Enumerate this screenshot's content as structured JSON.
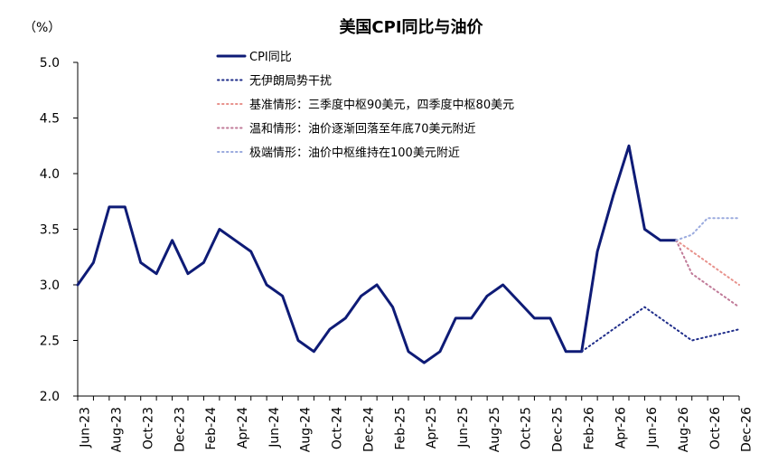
{
  "chart_data": {
    "type": "line",
    "title": "美国CPI同比与油价",
    "unit_label": "（%）",
    "ylim": [
      2.0,
      5.0
    ],
    "y_ticks": [
      "2.0",
      "2.5",
      "3.0",
      "3.5",
      "4.0",
      "4.5",
      "5.0"
    ],
    "x_tick_labels": [
      "Jun-23",
      "Aug-23",
      "Oct-23",
      "Dec-23",
      "Feb-24",
      "Apr-24",
      "Jun-24",
      "Aug-24",
      "Oct-24",
      "Dec-24",
      "Feb-25",
      "Apr-25",
      "Jun-25",
      "Aug-25",
      "Oct-25",
      "Dec-25",
      "Feb-26",
      "Apr-26",
      "Jun-26",
      "Aug-26",
      "Oct-26",
      "Dec-26"
    ],
    "x_months": [
      "2023-06",
      "2023-07",
      "2023-08",
      "2023-09",
      "2023-10",
      "2023-11",
      "2023-12",
      "2024-01",
      "2024-02",
      "2024-03",
      "2024-04",
      "2024-05",
      "2024-06",
      "2024-07",
      "2024-08",
      "2024-09",
      "2024-10",
      "2024-11",
      "2024-12",
      "2025-01",
      "2025-02",
      "2025-03",
      "2025-04",
      "2025-05",
      "2025-06",
      "2025-07",
      "2025-08",
      "2025-09",
      "2025-10",
      "2025-11",
      "2025-12",
      "2026-01",
      "2026-02",
      "2026-03",
      "2026-04",
      "2026-05",
      "2026-06",
      "2026-07",
      "2026-08",
      "2026-09",
      "2026-10",
      "2026-11",
      "2026-12"
    ],
    "grid": false,
    "legend_position": "top-center",
    "series": [
      {
        "name": "CPI同比",
        "style": "solid",
        "color": "#0e1b76",
        "x": [
          "2023-06",
          "2023-07",
          "2023-08",
          "2023-09",
          "2023-10",
          "2023-11",
          "2023-12",
          "2024-01",
          "2024-02",
          "2024-03",
          "2024-04",
          "2024-05",
          "2024-06",
          "2024-07",
          "2024-08",
          "2024-09",
          "2024-10",
          "2024-11",
          "2024-12",
          "2025-01",
          "2025-02",
          "2025-03",
          "2025-04",
          "2025-05",
          "2025-06",
          "2025-07",
          "2025-08",
          "2025-09",
          "2025-10",
          "2025-11",
          "2025-12",
          "2026-01",
          "2026-02",
          "2026-03",
          "2026-04",
          "2026-05",
          "2026-06",
          "2026-07",
          "2026-08"
        ],
        "values": [
          3.0,
          3.2,
          3.7,
          3.7,
          3.2,
          3.1,
          3.4,
          3.1,
          3.2,
          3.5,
          3.4,
          3.3,
          3.0,
          2.9,
          2.5,
          2.4,
          2.6,
          2.7,
          2.9,
          3.0,
          2.8,
          2.4,
          2.3,
          2.4,
          2.7,
          2.7,
          2.9,
          3.0,
          2.85,
          2.7,
          2.7,
          2.4,
          2.4,
          3.3,
          3.8,
          4.25,
          3.5,
          3.4,
          3.4
        ]
      },
      {
        "name": "无伊朗局势干扰",
        "style": "dotted",
        "color": "#1f2d8a",
        "x": [
          "2026-02",
          "2026-06",
          "2026-09",
          "2026-12"
        ],
        "values": [
          2.4,
          2.8,
          2.5,
          2.6
        ]
      },
      {
        "name": "基准情形：三季度中枢90美元，四季度中枢80美元",
        "style": "dotted",
        "color": "#e8928c",
        "x": [
          "2026-08",
          "2026-12"
        ],
        "values": [
          3.4,
          3.0
        ]
      },
      {
        "name": "温和情形：油价逐渐回落至年底70美元附近",
        "style": "dotted",
        "color": "#c07a98",
        "x": [
          "2026-08",
          "2026-09",
          "2026-12"
        ],
        "values": [
          3.4,
          3.1,
          2.8
        ]
      },
      {
        "name": "极端情形：油价中枢维持在100美元附近",
        "style": "dotted",
        "color": "#9aaade",
        "x": [
          "2026-08",
          "2026-09",
          "2026-10",
          "2026-12"
        ],
        "values": [
          3.4,
          3.45,
          3.6,
          3.6
        ]
      }
    ]
  }
}
